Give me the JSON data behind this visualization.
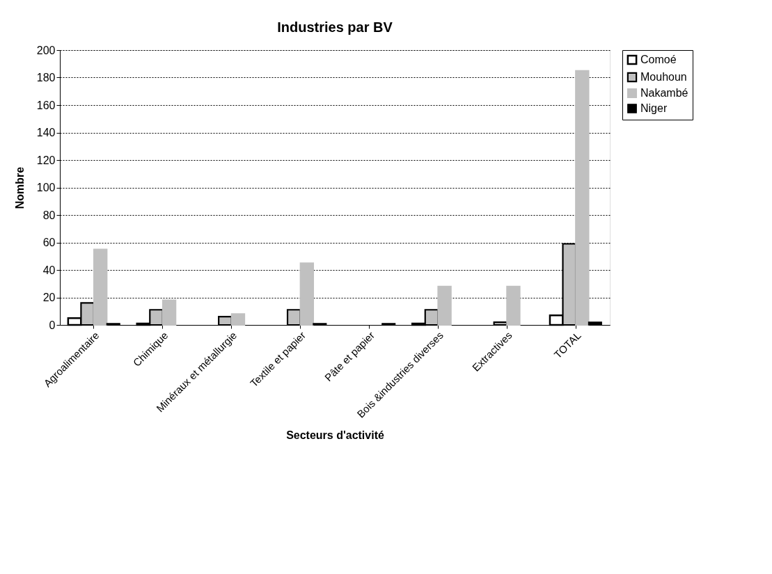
{
  "chart_data": {
    "type": "bar",
    "title": "Industries par BV",
    "xlabel": "Secteurs d'activité",
    "ylabel": "Nombre",
    "categories": [
      "Agroalimentaire",
      "Chimique",
      "Minéraux et métallurgie",
      "Textile et papier",
      "Pâte et papier",
      "Bois &industries diverses",
      "Extractives",
      "TOTAL"
    ],
    "series": [
      {
        "name": "Comoé",
        "color": "#ffffff",
        "values": [
          5,
          1,
          0,
          0,
          0,
          1,
          0,
          7
        ]
      },
      {
        "name": "Mouhoun",
        "color": "#c0c0c0",
        "values": [
          16,
          11,
          6,
          11,
          0,
          11,
          2,
          59
        ]
      },
      {
        "name": "Nakambé",
        "color": "#c0c0c0",
        "values": [
          55,
          18,
          8,
          45,
          0,
          28,
          28,
          185
        ]
      },
      {
        "name": "Niger",
        "color": "#000000",
        "values": [
          1,
          0,
          0,
          1,
          1,
          0,
          0,
          2
        ]
      }
    ],
    "ylim": [
      0,
      200
    ],
    "yticks": [
      0,
      20,
      40,
      60,
      80,
      100,
      120,
      140,
      160,
      180,
      200
    ],
    "grid": "y",
    "legend": "right"
  }
}
